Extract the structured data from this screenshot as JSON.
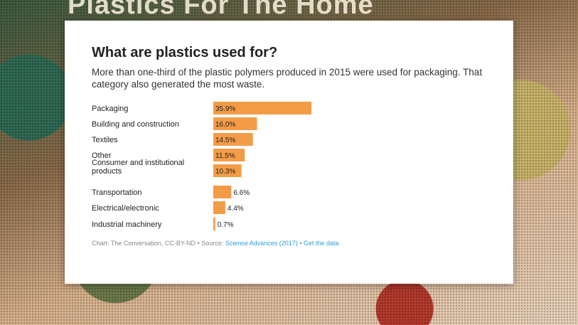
{
  "background": {
    "sign_text": "Plastics For The Home"
  },
  "title": "What are plastics used for?",
  "subtitle": "More than one-third of the plastic polymers produced in 2015 were used for packaging. That category also generated the most waste.",
  "footer": {
    "prefix": "Chart: The Conversation, CC-BY-ND • Source: ",
    "source_link": "Science Advances (2017)",
    "separator": " • ",
    "data_link": "Get the data"
  },
  "colors": {
    "bar": "#f39c47",
    "link": "#2a9fd6"
  },
  "chart_data": {
    "type": "bar",
    "orientation": "horizontal",
    "categories": [
      "Packaging",
      "Building and construction",
      "Textiles",
      "Other",
      "Consumer and institutional products",
      "Transportation",
      "Electrical/electronic",
      "Industrial machinery"
    ],
    "category_lines": [
      [
        "Packaging"
      ],
      [
        "Building and construction"
      ],
      [
        "Textiles"
      ],
      [
        "Other"
      ],
      [
        "Consumer and institutional",
        "products"
      ],
      [
        "Transportation"
      ],
      [
        "Electrical/electronic"
      ],
      [
        "Industrial machinery"
      ]
    ],
    "values": [
      35.9,
      16.0,
      14.5,
      11.5,
      10.3,
      6.6,
      4.4,
      0.7
    ],
    "value_labels": [
      "35.9%",
      "16.0%",
      "14.5%",
      "11.5%",
      "10.3%",
      "6.6%",
      "4.4%",
      "0.7%"
    ],
    "unit": "%",
    "xlim": [
      0,
      35.9
    ]
  }
}
